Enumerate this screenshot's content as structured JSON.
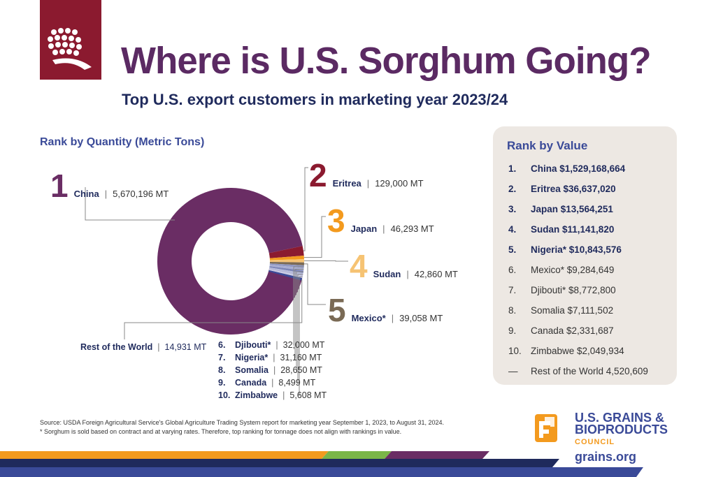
{
  "header": {
    "title": "Where is U.S. Sorghum Going?",
    "subtitle": "Top U.S. export customers in marketing year 2023/24"
  },
  "colors": {
    "china": "#6a2d64",
    "eritrea": "#8b1a2f",
    "japan": "#f39a1e",
    "sudan": "#f6c373",
    "mexico": "#7a6a55",
    "others": "#9aa0c8",
    "rest": "#3a4a98",
    "navy": "#1f2a5c",
    "accent_blue": "#3a4a98",
    "panel_bg": "#ede8e3"
  },
  "chart_data": {
    "type": "pie",
    "title": "Rank by Quantity (Metric Tons)",
    "donut": true,
    "unit": "MT",
    "slices": [
      {
        "rank": "1",
        "name": "China",
        "value": 5670196,
        "label": "5,670,196 MT"
      },
      {
        "rank": "2",
        "name": "Eritrea",
        "value": 129000,
        "label": "129,000 MT"
      },
      {
        "rank": "3",
        "name": "Japan",
        "value": 46293,
        "label": "46,293 MT"
      },
      {
        "rank": "4",
        "name": "Sudan",
        "value": 42860,
        "label": "42,860 MT"
      },
      {
        "rank": "5",
        "name": "Mexico*",
        "value": 39058,
        "label": "39,058 MT"
      },
      {
        "rank": "6.",
        "name": "Djibouti*",
        "value": 32000,
        "label": "32,000 MT"
      },
      {
        "rank": "7.",
        "name": "Nigeria*",
        "value": 31160,
        "label": "31,160 MT"
      },
      {
        "rank": "8.",
        "name": "Somalia",
        "value": 28650,
        "label": "28,650 MT"
      },
      {
        "rank": "9.",
        "name": "Canada",
        "value": 8499,
        "label": "8,499 MT"
      },
      {
        "rank": "10.",
        "name": "Zimbabwe",
        "value": 5608,
        "label": "5,608 MT"
      },
      {
        "rank": "",
        "name": "Rest of the World",
        "value": 14931,
        "label": "14,931 MT"
      }
    ]
  },
  "value_ranking": {
    "heading": "Rank by Value",
    "items": [
      {
        "n": "1.",
        "text": "China $1,529,168,664"
      },
      {
        "n": "2.",
        "text": "Eritrea $36,637,020"
      },
      {
        "n": "3.",
        "text": "Japan $13,564,251"
      },
      {
        "n": "4.",
        "text": "Sudan $11,141,820"
      },
      {
        "n": "5.",
        "text": "Nigeria* $10,843,576"
      },
      {
        "n": "6.",
        "text": "Mexico* $9,284,649"
      },
      {
        "n": "7.",
        "text": "Djibouti* $8,772,800"
      },
      {
        "n": "8.",
        "text": "Somalia $7,111,502"
      },
      {
        "n": "9.",
        "text": "Canada $2,331,687"
      },
      {
        "n": "10.",
        "text": "Zimbabwe $2,049,934"
      },
      {
        "n": "—",
        "text": "Rest of the World 4,520,609"
      }
    ]
  },
  "footer": {
    "source": "Source: USDA Foreign Agricultural Service's Global Agriculture Trading System report for marketing year September 1, 2023, to August 31, 2024.",
    "note": "* Sorghum is sold based on contract and at varying rates. Therefore, top ranking for tonnage does not align with rankings in value.",
    "org_line1": "U.S. GRAINS &",
    "org_line2": "BIOPRODUCTS",
    "org_line3": "COUNCIL",
    "url": "grains.org"
  },
  "separator": "|"
}
